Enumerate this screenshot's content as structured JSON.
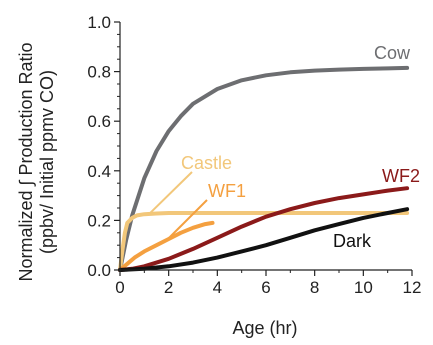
{
  "chart_data": {
    "type": "line",
    "xlabel": "Age (hr)",
    "ylabel_lines": [
      "Normalized ∫ Production Ratio",
      "(ppbv/ Initial ppmv CO)"
    ],
    "xlim": [
      0,
      12
    ],
    "ylim": [
      0,
      1.0
    ],
    "x_ticks": [
      "0",
      "2",
      "4",
      "6",
      "8",
      "10",
      "12"
    ],
    "y_ticks": [
      "0.0",
      "0.2",
      "0.4",
      "0.6",
      "0.8",
      "1.0"
    ],
    "grid": false,
    "legend": "none",
    "series": [
      {
        "name": "Cow",
        "color": "#6d6e71",
        "x": [
          0,
          0.25,
          0.5,
          1,
          1.5,
          2,
          2.5,
          3,
          4,
          5,
          6,
          7,
          8,
          9,
          10,
          11,
          11.8
        ],
        "y": [
          0,
          0.12,
          0.22,
          0.37,
          0.48,
          0.56,
          0.62,
          0.67,
          0.73,
          0.765,
          0.785,
          0.797,
          0.804,
          0.808,
          0.811,
          0.813,
          0.815
        ]
      },
      {
        "name": "Castle",
        "color": "#f2c77a",
        "x": [
          0,
          0.1,
          0.2,
          0.3,
          0.5,
          0.7,
          1,
          1.5,
          2,
          3,
          4,
          6,
          8,
          10,
          11.8
        ],
        "y": [
          0,
          0.08,
          0.15,
          0.19,
          0.21,
          0.22,
          0.225,
          0.228,
          0.23,
          0.23,
          0.23,
          0.23,
          0.23,
          0.23,
          0.23
        ]
      },
      {
        "name": "WF1",
        "color": "#f4a040",
        "x": [
          0,
          0.3,
          0.6,
          1,
          1.5,
          2,
          2.5,
          3,
          3.5,
          3.8
        ],
        "y": [
          0,
          0.025,
          0.05,
          0.075,
          0.1,
          0.125,
          0.15,
          0.17,
          0.185,
          0.19
        ]
      },
      {
        "name": "WF2",
        "color": "#8b1a1a",
        "x": [
          0,
          0.5,
          1,
          2,
          3,
          4,
          5,
          6,
          7,
          8,
          9,
          10,
          11,
          11.8
        ],
        "y": [
          0,
          0.005,
          0.015,
          0.045,
          0.085,
          0.13,
          0.175,
          0.215,
          0.245,
          0.27,
          0.29,
          0.305,
          0.32,
          0.33
        ]
      },
      {
        "name": "Dark",
        "color": "#111111",
        "x": [
          0,
          1,
          2,
          3,
          4,
          5,
          6,
          7,
          8,
          9,
          10,
          11,
          11.8
        ],
        "y": [
          0,
          0.005,
          0.015,
          0.03,
          0.05,
          0.075,
          0.1,
          0.13,
          0.16,
          0.185,
          0.21,
          0.23,
          0.245
        ]
      }
    ],
    "annotations": [
      {
        "text": "Cow",
        "color": "#6d6e71"
      },
      {
        "text": "Castle",
        "color": "#f2c77a"
      },
      {
        "text": "WF1",
        "color": "#f4a040"
      },
      {
        "text": "WF2",
        "color": "#8b1a1a"
      },
      {
        "text": "Dark",
        "color": "#111111"
      }
    ]
  }
}
